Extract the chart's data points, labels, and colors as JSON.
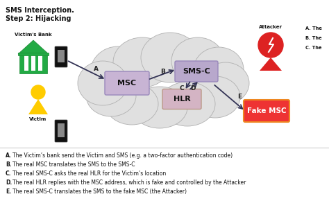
{
  "title_line1": "SMS Interception.",
  "title_line2": "Step 2: Hijacking",
  "bg_color": "#ffffff",
  "cloud_color": "#e0e0e0",
  "cloud_ec": "#b0b0b0",
  "msc_color": "#c8b4d4",
  "msc_ec": "#9988bb",
  "smsc_color": "#b8a8cc",
  "smsc_ec": "#9988bb",
  "hlr_color": "#d4b4c4",
  "hlr_ec": "#bb9988",
  "fakemsc_color": "#ee3333",
  "fakemsc_ec": "#ee8822",
  "bank_color": "#22aa44",
  "victim_color": "#ffcc00",
  "attacker_color": "#dd2222",
  "arrow_color": "#333355",
  "legend_lines": [
    [
      "A",
      "The Victim’s bank send the Victim and SMS (e.g. a two-factor authentication code)"
    ],
    [
      "B",
      "The real MSC translates the SMS to the SMS-C"
    ],
    [
      "C",
      "The real SMS-C asks the real HLR for the Victim’s location"
    ],
    [
      "D",
      "The real HLR replies with the MSC address, which is fake and controlled by the Attacker"
    ],
    [
      "E",
      "The real SMS-C translates the SMS to the fake MSC (the Attacker)"
    ]
  ],
  "right_legend": [
    "A. The",
    "B. The",
    "C. The"
  ]
}
